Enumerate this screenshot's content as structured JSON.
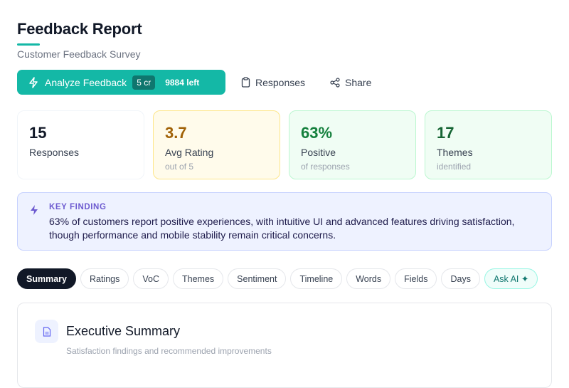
{
  "header": {
    "title": "Feedback Report",
    "subtitle": "Customer Feedback Survey"
  },
  "actions": {
    "analyze": {
      "label": "Analyze Feedback",
      "cost": "5 cr",
      "remaining": "9884 left"
    },
    "responses": "Responses",
    "share": "Share"
  },
  "stats": [
    {
      "value": "15",
      "label": "Responses"
    },
    {
      "value": "3.7",
      "label": "Avg Rating",
      "note": "out of 5"
    },
    {
      "value": "63%",
      "label": "Positive",
      "note": "of responses"
    },
    {
      "value": "17",
      "label": "Themes",
      "note": "identified"
    }
  ],
  "key_finding": {
    "label": "KEY FINDING",
    "text": "63% of customers report positive experiences, with intuitive UI and advanced features driving satisfaction, though performance and mobile stability remain critical concerns."
  },
  "tabs": [
    "Summary",
    "Ratings",
    "VoC",
    "Themes",
    "Sentiment",
    "Timeline",
    "Words",
    "Fields",
    "Days",
    "Ask AI ✦"
  ],
  "section": {
    "title": "Executive Summary",
    "subtitle": "Satisfaction findings and recommended improvements"
  }
}
